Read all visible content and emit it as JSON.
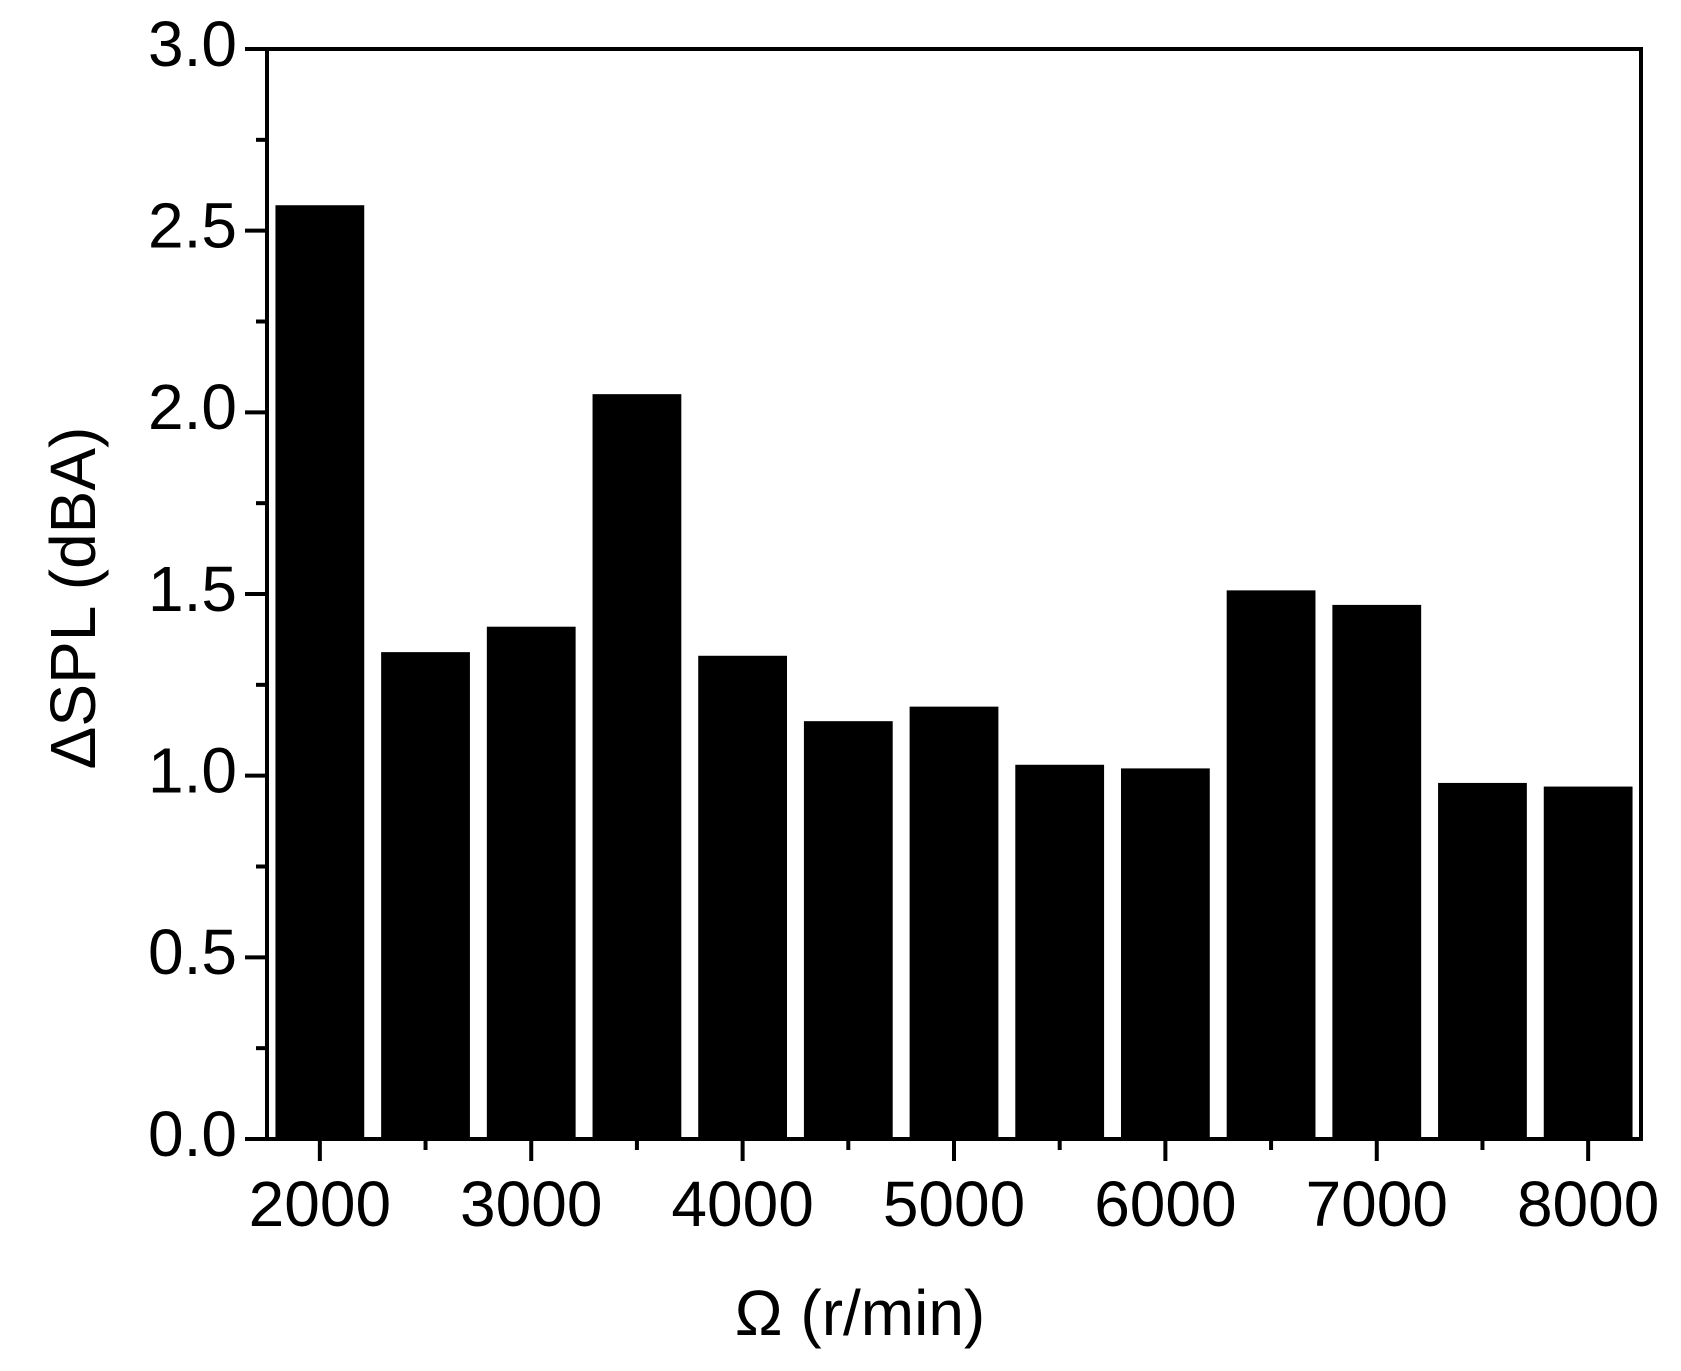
{
  "chart_data": {
    "type": "bar",
    "x_label": "Ω (r/min)",
    "y_label": "ΔSPL (dBA)",
    "x": [
      2000,
      2500,
      3000,
      3500,
      4000,
      4500,
      5000,
      5500,
      6000,
      6500,
      7000,
      7500,
      8000
    ],
    "values": [
      2.57,
      1.34,
      1.41,
      2.05,
      1.33,
      1.15,
      1.19,
      1.03,
      1.02,
      1.51,
      1.47,
      0.98,
      0.97
    ],
    "color": "#000000",
    "xlim": [
      1750,
      8250
    ],
    "xticks": [
      2000,
      3000,
      4000,
      5000,
      6000,
      7000,
      8000
    ],
    "ylim": [
      0,
      3
    ],
    "yticks": [
      {
        "value": 0,
        "label": "0.0"
      },
      {
        "value": 0.5,
        "label": "0.5"
      },
      {
        "value": 1,
        "label": "1.0"
      },
      {
        "value": 1.5,
        "label": "1.5"
      },
      {
        "value": 2,
        "label": "2.0"
      },
      {
        "value": 2.5,
        "label": "2.5"
      },
      {
        "value": 3,
        "label": "3.0"
      }
    ]
  }
}
